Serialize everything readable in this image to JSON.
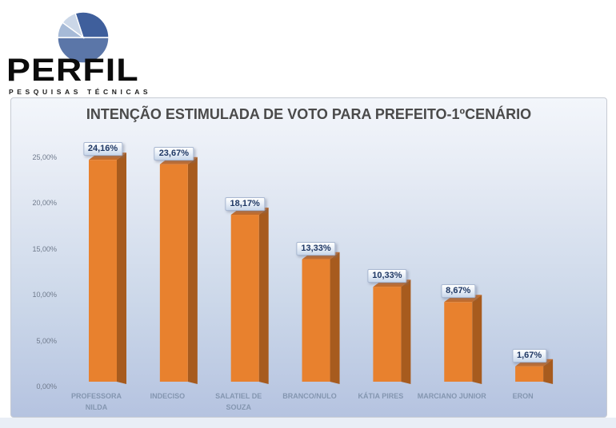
{
  "logo": {
    "brand": "PERFIL",
    "tagline": "PESQUISAS TÉCNICAS",
    "pie_icon": "pie-chart-logo-icon",
    "pie_slices": [
      {
        "start": -18,
        "end": 90,
        "color": "#3F5F9C"
      },
      {
        "start": 90,
        "end": 270,
        "color": "#5B76A8"
      },
      {
        "start": 270,
        "end": 306,
        "color": "#A6BAD7"
      },
      {
        "start": 306,
        "end": 342,
        "color": "#CBD7E8"
      }
    ]
  },
  "chart_data": {
    "type": "bar",
    "title": "INTENÇÃO ESTIMULADA DE VOTO PARA PREFEITO-1ºCENÁRIO",
    "categories": [
      "PROFESSORA NILDA",
      "INDECISO",
      "SALATIEL DE SOUZA",
      "BRANCO/NULO",
      "KÁTIA PIRES",
      "MARCIANO JUNIOR",
      "ERON"
    ],
    "values": [
      24.16,
      23.67,
      18.17,
      13.33,
      10.33,
      8.67,
      1.67
    ],
    "value_labels": [
      "24,16%",
      "23,67%",
      "18,17%",
      "13,33%",
      "10,33%",
      "8,67%",
      "1,67%"
    ],
    "y_ticks": [
      "25,00%",
      "20,00%",
      "15,00%",
      "10,00%",
      "5,00%",
      "0,00%"
    ],
    "y_tick_values": [
      25,
      20,
      15,
      10,
      5,
      0
    ],
    "ylim": [
      0,
      25
    ],
    "xlabel": "",
    "ylabel": "",
    "grid": false,
    "legend": null,
    "style_3d": true,
    "colors": {
      "bar_front": "#E8812E",
      "bar_side": "#A75B1E",
      "bar_top": "#C76C27",
      "value_label_text": "#1F3864",
      "title_text": "#4A4A4A",
      "x_label_text": "#8496B0",
      "y_label_text": "#6F7A8C",
      "plot_bg_top": "#F3F6FB",
      "plot_bg_bottom": "#B5C3E0"
    }
  }
}
